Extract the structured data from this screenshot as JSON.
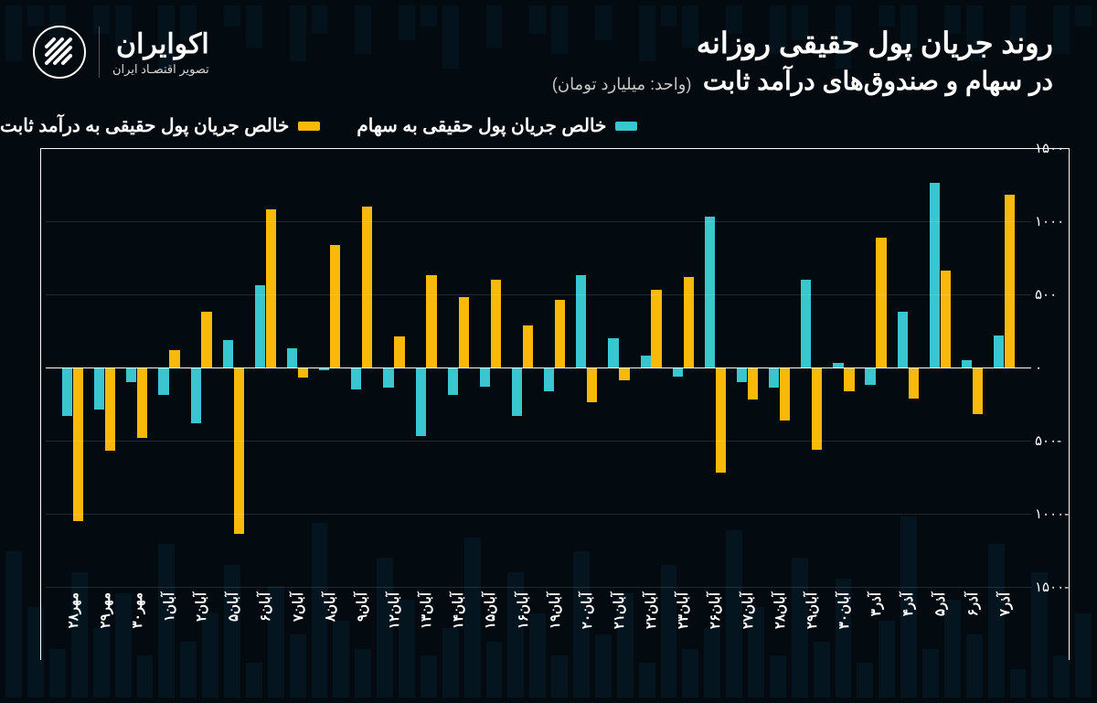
{
  "brand": {
    "name": "اکوایران",
    "tagline": "تصویر اقتصـاد ایران"
  },
  "title_line1": "روند جریان پول حقیقی روزانه",
  "title_line2": "در سهام و صندوق‌های درآمد ثابت",
  "unit": "(واحد: میلیارد تومان)",
  "legend": {
    "series_a": {
      "label": "خالص جریان پول حقیقی به سهام",
      "color": "#39c6cf"
    },
    "series_b": {
      "label": "خالص جریان پول حقیقی به درآمد ثابت",
      "color": "#f9b90b"
    }
  },
  "chart": {
    "type": "bar",
    "background_color": "#030b11",
    "grid_color": "rgba(255,255,255,0.12)",
    "axis_color": "#ffffff",
    "ylim": [
      -1500,
      1500
    ],
    "ytick_step": 500,
    "ytick_labels": [
      "۱۵۰۰",
      "۱۰۰۰",
      "۵۰۰",
      "۰",
      "۵۰۰-",
      "۱۰۰۰-",
      "۱۵۰۰-"
    ],
    "label_fontsize": 15,
    "bar_colors": {
      "a": "#39c6cf",
      "b": "#f9b90b"
    },
    "bar_width_pct": 32,
    "categories": [
      "مهر۲۸",
      "مهر۲۹",
      "مهر۳۰",
      "آبان۱",
      "آبان۲",
      "آبان۵",
      "آبان۶",
      "آبان۷",
      "آبان۸",
      "آبان۹",
      "آبان۱۲",
      "آبان۱۳",
      "آبان۱۴",
      "آبان۱۵",
      "آبان۱۶",
      "آبان۱۹",
      "آبان۲۰",
      "آبان۲۱",
      "آبان۲۲",
      "آبان۲۳",
      "آبان۲۶",
      "آبان۲۷",
      "آبان۲۸",
      "آبان۲۹",
      "آبان۳۰",
      "آذر۳",
      "آذر۴",
      "آذر۵",
      "آذر۶",
      "آذر۷"
    ],
    "series": {
      "a": [
        -330,
        -290,
        -100,
        -190,
        -380,
        190,
        560,
        130,
        -20,
        -150,
        -140,
        -470,
        -190,
        -130,
        -330,
        -160,
        630,
        200,
        80,
        -60,
        1030,
        -100,
        -140,
        600,
        30,
        -120,
        380,
        1260,
        50,
        220
      ],
      "b": [
        -1050,
        -570,
        -480,
        120,
        380,
        -1140,
        1080,
        -70,
        840,
        1100,
        210,
        630,
        480,
        600,
        290,
        460,
        -240,
        -90,
        530,
        620,
        -720,
        -220,
        -360,
        -560,
        -160,
        890,
        -210,
        660,
        -320,
        1180
      ]
    }
  },
  "bg_deco": {
    "bottom_heights_pct": [
      12,
      6,
      18,
      4,
      22,
      9,
      14,
      7,
      26,
      11,
      5,
      17,
      8,
      20,
      6,
      13,
      24,
      10,
      7,
      19,
      5,
      15,
      9,
      21,
      6,
      12,
      18,
      8,
      23,
      10,
      6,
      14,
      20,
      7,
      11,
      25,
      9,
      16,
      5,
      19,
      12,
      8,
      22,
      6,
      15,
      10,
      18,
      7,
      13,
      21
    ],
    "top_heights_pct": [
      3,
      7,
      0,
      5,
      0,
      8,
      4,
      0,
      6,
      3,
      0,
      9,
      0,
      5,
      7,
      0,
      4,
      0,
      6,
      3,
      8,
      0,
      5,
      0,
      7,
      4,
      0,
      6,
      0,
      9,
      3,
      5,
      0,
      7,
      0,
      4,
      8,
      0,
      6,
      3,
      0,
      5,
      9,
      0,
      7,
      4,
      0,
      6,
      3,
      8
    ]
  }
}
